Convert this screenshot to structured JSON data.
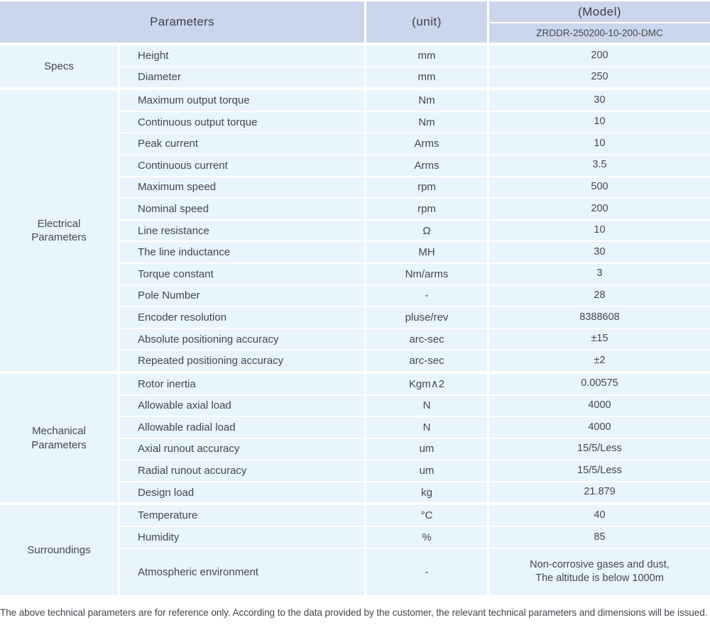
{
  "header": {
    "parameters_label": "Parameters",
    "unit_label": "(unit)",
    "model_label": "(Model)",
    "model_value": "ZRDDR-250200-10-200-DMC"
  },
  "sections": [
    {
      "category": "Specs",
      "rows": [
        {
          "param": "Height",
          "unit": "mm",
          "value": "200"
        },
        {
          "param": "Diameter",
          "unit": "mm",
          "value": "250"
        }
      ]
    },
    {
      "category": "Electrical\nParameters",
      "rows": [
        {
          "param": "Maximum output torque",
          "unit": "Nm",
          "value": "30"
        },
        {
          "param": "Continuous output torque",
          "unit": "Nm",
          "value": "10"
        },
        {
          "param": "Peak current",
          "unit": "Arms",
          "value": "10"
        },
        {
          "param": "Continuous current",
          "unit": "Arms",
          "value": "3.5"
        },
        {
          "param": "Maximum speed",
          "unit": "rpm",
          "value": "500"
        },
        {
          "param": "Nominal speed",
          "unit": "rpm",
          "value": "200"
        },
        {
          "param": "Line resistance",
          "unit": "Ω",
          "value": "10"
        },
        {
          "param": "The line inductance",
          "unit": "MH",
          "value": "30"
        },
        {
          "param": "Torque constant",
          "unit": "Nm/arms",
          "value": "3"
        },
        {
          "param": "Pole Number",
          "unit": "-",
          "value": "28"
        },
        {
          "param": "Encoder resolution",
          "unit": "pluse/rev",
          "value": "8388608"
        },
        {
          "param": "Absolute positioning accuracy",
          "unit": "arc-sec",
          "value": "±15"
        },
        {
          "param": "Repeated positioning accuracy",
          "unit": "arc-sec",
          "value": "±2"
        }
      ]
    },
    {
      "category": "Mechanical\nParameters",
      "rows": [
        {
          "param": "Rotor inertia",
          "unit": "Kgm∧2",
          "value": "0.00575"
        },
        {
          "param": "Allowable axial load",
          "unit": "N",
          "value": "4000"
        },
        {
          "param": "Allowable radial load",
          "unit": "N",
          "value": "4000"
        },
        {
          "param": "Axial runout accuracy",
          "unit": "um",
          "value": "15/5/Less"
        },
        {
          "param": "Radial runout accuracy",
          "unit": "um",
          "value": "15/5/Less"
        },
        {
          "param": "Design load",
          "unit": "kg",
          "value": "21.879"
        }
      ]
    },
    {
      "category": "Surroundings",
      "rows": [
        {
          "param": "Temperature",
          "unit": "°C",
          "value": "40"
        },
        {
          "param": "Humidity",
          "unit": "%",
          "value": "85"
        },
        {
          "param": "Atmospheric environment",
          "unit": "-",
          "value": "Non-corrosive gases and dust,\nThe altitude is below 1000m"
        }
      ]
    }
  ],
  "footer": {
    "note": "The above technical parameters are for reference only. According to the data provided by the customer, the relevant technical parameters and dimensions will be issued."
  },
  "colors": {
    "header_bg": "#cbd6ec",
    "row_bg": "#e9f5fd",
    "text": "#42474e"
  }
}
